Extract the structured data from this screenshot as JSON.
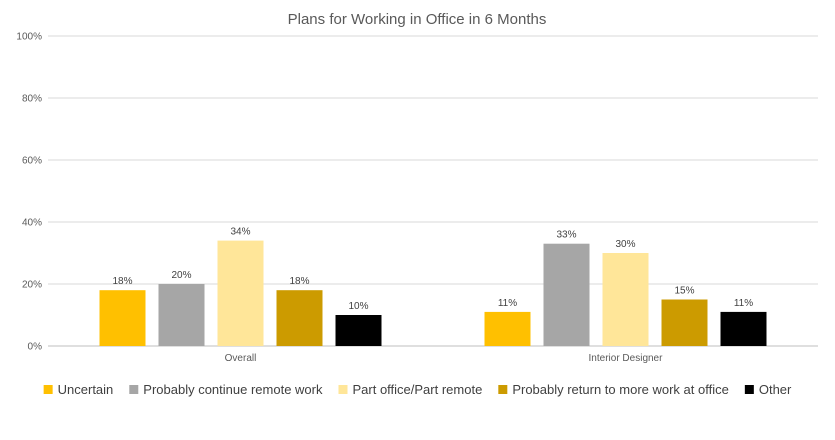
{
  "chart_data": {
    "type": "bar",
    "title": "Plans for Working in Office in 6 Months",
    "categories": [
      "Overall",
      "Interior Designer"
    ],
    "yticks": [
      "0%",
      "20%",
      "40%",
      "60%",
      "80%",
      "100%"
    ],
    "ylim": [
      0,
      100
    ],
    "grid": true,
    "legend_position": "bottom",
    "series": [
      {
        "name": "Uncertain",
        "color": "#ffc000",
        "values": [
          18,
          11
        ],
        "labels": [
          "18%",
          "11%"
        ]
      },
      {
        "name": "Probably continue remote work",
        "color": "#a6a6a6",
        "values": [
          20,
          33
        ],
        "labels": [
          "20%",
          "33%"
        ]
      },
      {
        "name": "Part office/Part remote",
        "color": "#ffe699",
        "values": [
          34,
          30
        ],
        "labels": [
          "34%",
          "30%"
        ]
      },
      {
        "name": "Probably return to more work at office",
        "color": "#cc9b00",
        "values": [
          18,
          15
        ],
        "labels": [
          "18%",
          "15%"
        ]
      },
      {
        "name": "Other",
        "color": "#000000",
        "values": [
          10,
          11
        ],
        "labels": [
          "10%",
          "11%"
        ]
      }
    ]
  }
}
